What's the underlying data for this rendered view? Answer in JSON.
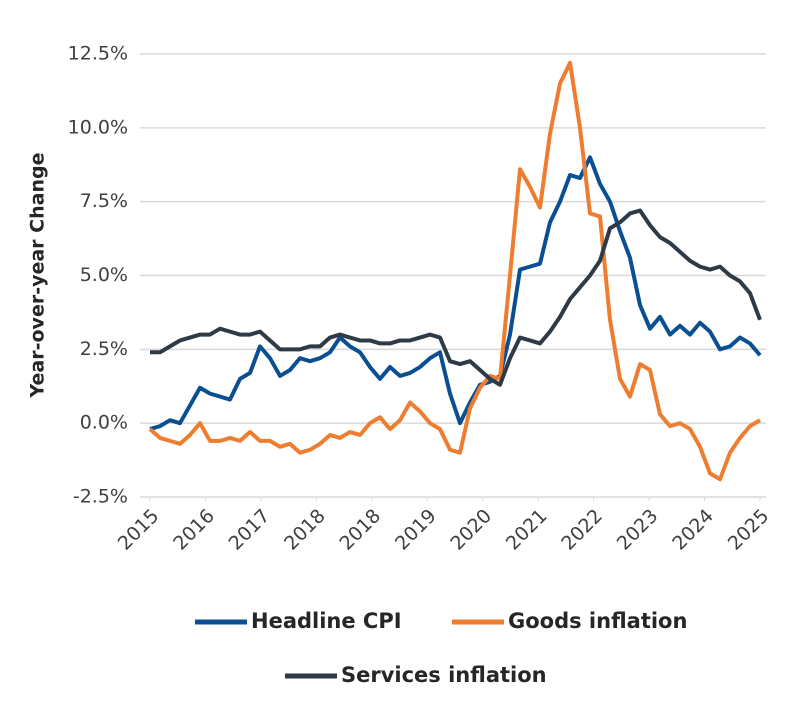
{
  "chart_data": {
    "type": "line",
    "y_label": "Year-over-year Change",
    "x": [
      0,
      1,
      2,
      3,
      4,
      5,
      6,
      7,
      8,
      9,
      10,
      11,
      12,
      13,
      14,
      15,
      16,
      17,
      18,
      19,
      20,
      21,
      22,
      23,
      24,
      25,
      26,
      27,
      28,
      29,
      30,
      31,
      32,
      33,
      34,
      35,
      36,
      37,
      38,
      39,
      40,
      41,
      42,
      43,
      44,
      45,
      46,
      47,
      48,
      49,
      50,
      51,
      52,
      53,
      54,
      55,
      56,
      57,
      58,
      59,
      60,
      61
    ],
    "xlim": [
      0,
      61
    ],
    "xticks": [
      {
        "value": 0,
        "label": "2015"
      },
      {
        "value": 5.55,
        "label": "2016"
      },
      {
        "value": 11.09,
        "label": "2017"
      },
      {
        "value": 16.64,
        "label": "2018"
      },
      {
        "value": 22.18,
        "label": "2018"
      },
      {
        "value": 27.73,
        "label": "2019"
      },
      {
        "value": 33.27,
        "label": "2020"
      },
      {
        "value": 38.82,
        "label": "2021"
      },
      {
        "value": 44.36,
        "label": "2022"
      },
      {
        "value": 49.91,
        "label": "2023"
      },
      {
        "value": 55.45,
        "label": "2024"
      },
      {
        "value": 61,
        "label": "2025"
      }
    ],
    "ylim": [
      -2.5,
      12.5
    ],
    "yticks": [
      {
        "value": -2.5,
        "label": "-2.5%"
      },
      {
        "value": 0,
        "label": "0.0%"
      },
      {
        "value": 2.5,
        "label": "2.5%"
      },
      {
        "value": 5,
        "label": "5.0%"
      },
      {
        "value": 7.5,
        "label": "7.5%"
      },
      {
        "value": 10,
        "label": "10.0%"
      },
      {
        "value": 12.5,
        "label": "12.5%"
      }
    ],
    "grid": true,
    "series": [
      {
        "name": "Headline CPI",
        "color": "#0b4f93",
        "values": [
          -0.2,
          -0.1,
          0.1,
          0.0,
          0.6,
          1.2,
          1.0,
          0.9,
          0.8,
          1.5,
          1.7,
          2.6,
          2.2,
          1.6,
          1.8,
          2.2,
          2.1,
          2.2,
          2.4,
          2.9,
          2.6,
          2.4,
          1.9,
          1.5,
          1.9,
          1.6,
          1.7,
          1.9,
          2.2,
          2.4,
          1.0,
          0.0,
          0.7,
          1.3,
          1.4,
          1.6,
          3.0,
          5.2,
          5.3,
          5.4,
          6.8,
          7.5,
          8.4,
          8.3,
          9.0,
          8.1,
          7.5,
          6.5,
          5.6,
          4.0,
          3.2,
          3.6,
          3.0,
          3.3,
          3.0,
          3.4,
          3.1,
          2.5,
          2.6,
          2.9,
          2.7,
          2.3
        ]
      },
      {
        "name": "Goods inflation",
        "color": "#ee7d2f",
        "values": [
          -0.2,
          -0.5,
          -0.6,
          -0.7,
          -0.4,
          0.0,
          -0.6,
          -0.6,
          -0.5,
          -0.6,
          -0.3,
          -0.6,
          -0.6,
          -0.8,
          -0.7,
          -1.0,
          -0.9,
          -0.7,
          -0.4,
          -0.5,
          -0.3,
          -0.4,
          0.0,
          0.2,
          -0.2,
          0.1,
          0.7,
          0.4,
          0.0,
          -0.2,
          -0.9,
          -1.0,
          0.5,
          1.2,
          1.6,
          1.5,
          5.0,
          8.6,
          8.0,
          7.3,
          9.8,
          11.5,
          12.2,
          10.0,
          7.1,
          7.0,
          3.5,
          1.5,
          0.9,
          2.0,
          1.8,
          0.3,
          -0.1,
          0.0,
          -0.2,
          -0.8,
          -1.7,
          -1.9,
          -1.0,
          -0.5,
          -0.1,
          0.1
        ]
      },
      {
        "name": "Services inflation",
        "color": "#2e3a46",
        "values": [
          2.4,
          2.4,
          2.6,
          2.8,
          2.9,
          3.0,
          3.0,
          3.2,
          3.1,
          3.0,
          3.0,
          3.1,
          2.8,
          2.5,
          2.5,
          2.5,
          2.6,
          2.6,
          2.9,
          3.0,
          2.9,
          2.8,
          2.8,
          2.7,
          2.7,
          2.8,
          2.8,
          2.9,
          3.0,
          2.9,
          2.1,
          2.0,
          2.1,
          1.8,
          1.5,
          1.3,
          2.2,
          2.9,
          2.8,
          2.7,
          3.1,
          3.6,
          4.2,
          4.6,
          5.0,
          5.5,
          6.6,
          6.8,
          7.1,
          7.2,
          6.7,
          6.3,
          6.1,
          5.8,
          5.5,
          5.3,
          5.2,
          5.3,
          5.0,
          4.8,
          4.4,
          3.5
        ]
      }
    ]
  }
}
